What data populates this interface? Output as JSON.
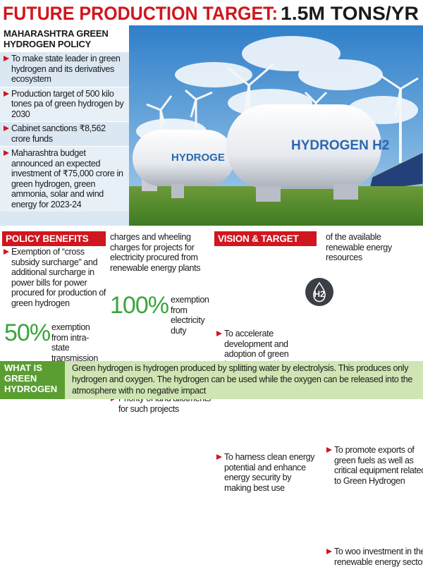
{
  "header": {
    "title": "FUTURE PRODUCTION TARGET:",
    "highlight": "1.5M TONS/YR"
  },
  "policy": {
    "heading": "MAHARASHTRA GREEN HYDROGEN POLICY",
    "points": [
      "To make state leader in green hydrogen and its derivatives ecosystem",
      "Production target of 500 kilo tones pa of green hydrogen by 2030",
      "Cabinet sanctions ₹8,562 crore funds",
      "Maharashtra budget announced an expected investment of ₹75,000 crore in green hydrogen, green ammonia, solar and wind energy for 2023-24"
    ]
  },
  "photo": {
    "tank_labels": [
      "HYDROGE",
      "HYDROGEN H2"
    ]
  },
  "benefits": {
    "heading": "POLICY BENEFITS",
    "points": [
      "Exemption of “cross subsidy surcharge” and additional surcharge in power bills for power procured for production of green hydrogen",
      "Priority of land allotments for such projects"
    ],
    "stats": [
      {
        "value": "50%",
        "text": "exemption from intra-state transmission",
        "continued": "charges and wheeling charges for projects for electricity procured from renewable energy plants"
      },
      {
        "value": "100%",
        "text": "exemption from electricity duty"
      }
    ]
  },
  "vision": {
    "heading": "VISION & TARGET",
    "points": [
      "To accelerate development and adoption of green hydrogen and its derivatives as alternative fuel",
      "To harness clean energy potential and enhance energy security by making best use",
      "To promote exports of green fuels as well as critical equipment related to Green Hydrogen",
      "To woo investment in the renewable energy sector"
    ],
    "continued": "of the available renewable energy resources",
    "icon_label": "H2"
  },
  "footer": {
    "label": "WHAT IS GREEN HYDROGEN",
    "text": "Green hydrogen is hydrogen produced by splitting water by electrolysis. This produces only hydrogen and oxygen. The hydrogen can be used while the oxygen can be released into the atmosphere with no negative impact"
  }
}
